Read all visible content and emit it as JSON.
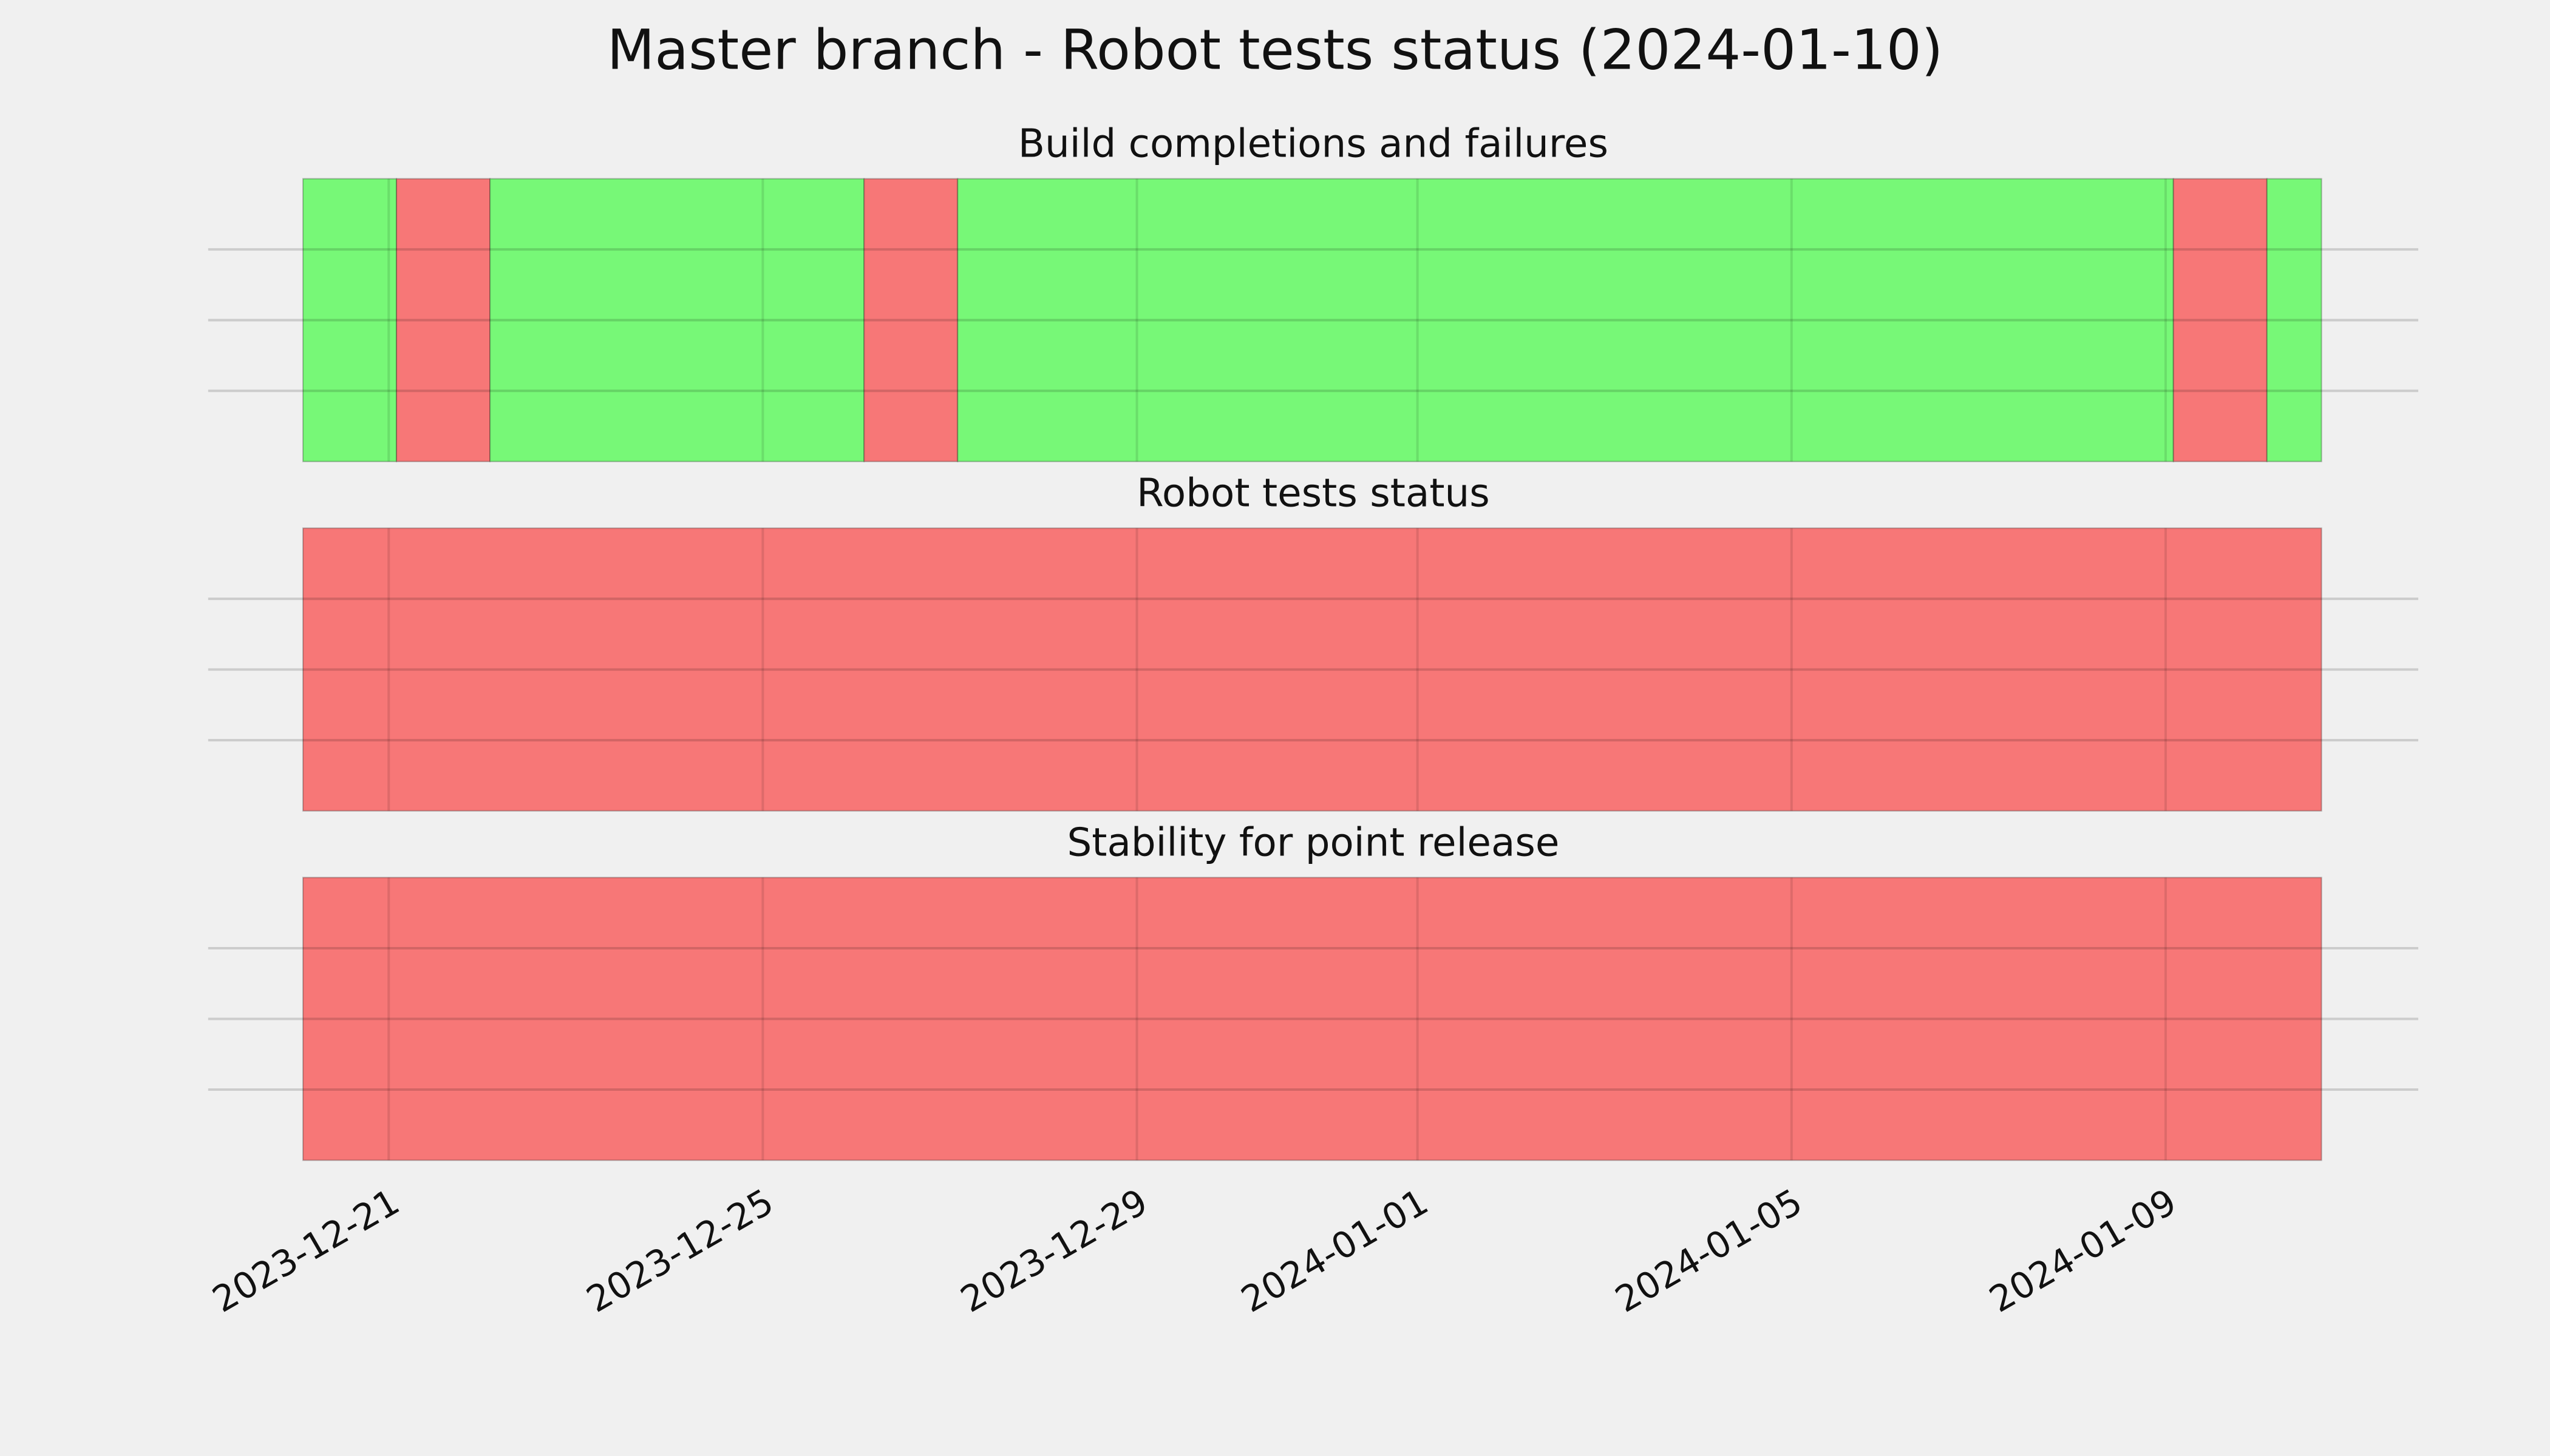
{
  "title": "Master branch - Robot tests status (2024-01-10)",
  "xlim": [
    "2023-12-19T01:40",
    "2024-01-11T16:50"
  ],
  "xticks": [
    "2023-12-21",
    "2023-12-25",
    "2023-12-29",
    "2024-01-01",
    "2024-01-05",
    "2024-01-09"
  ],
  "ylim": [
    0,
    1
  ],
  "yticks": [
    0.25,
    0.5,
    0.75
  ],
  "grid": true,
  "chart_data": [
    {
      "type": "timeline",
      "title": "Build completions and failures",
      "segments": [
        {
          "start": "2023-12-20T02:00",
          "end": "2023-12-21T02:00",
          "color": "#77f877"
        },
        {
          "start": "2023-12-21T02:00",
          "end": "2023-12-22T02:00",
          "color": "#f77777"
        },
        {
          "start": "2023-12-22T02:00",
          "end": "2023-12-26T02:00",
          "color": "#77f877"
        },
        {
          "start": "2023-12-26T02:00",
          "end": "2023-12-27T02:00",
          "color": "#f77777"
        },
        {
          "start": "2023-12-27T02:00",
          "end": "2024-01-09T02:00",
          "color": "#77f877"
        },
        {
          "start": "2024-01-09T02:00",
          "end": "2024-01-10T02:00",
          "color": "#f77777"
        },
        {
          "start": "2024-01-10T02:00",
          "end": "2024-01-10T16:00",
          "color": "#77f877"
        }
      ]
    },
    {
      "type": "timeline",
      "title": "Robot tests status",
      "segments": [
        {
          "start": "2023-12-20T02:00",
          "end": "2024-01-10T16:00",
          "color": "#f77777"
        }
      ]
    },
    {
      "type": "timeline",
      "title": "Stability for point release",
      "segments": [
        {
          "start": "2023-12-20T02:00",
          "end": "2024-01-10T16:00",
          "color": "#f77777"
        }
      ]
    }
  ]
}
